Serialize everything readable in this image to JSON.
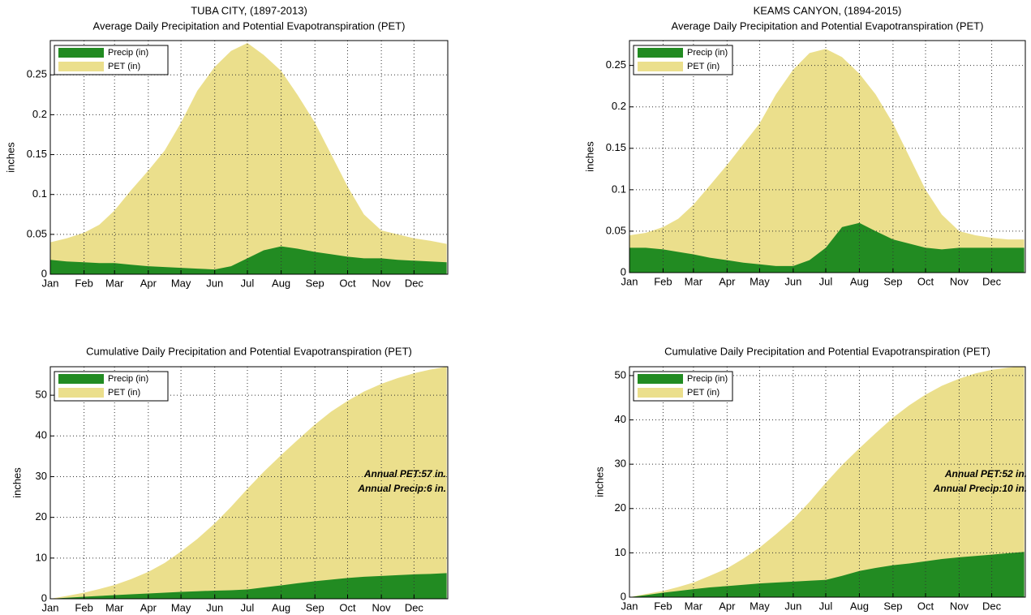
{
  "chart_data": [
    {
      "type": "area",
      "title": "TUBA CITY, (1897-2013)",
      "subtitle": "Average Daily Precipitation and Potential Evapotranspiration (PET)",
      "ylabel": "inches",
      "x": [
        1,
        16,
        32,
        46,
        60,
        75,
        91,
        106,
        121,
        136,
        152,
        167,
        182,
        197,
        213,
        228,
        244,
        259,
        274,
        289,
        305,
        320,
        335,
        350,
        365
      ],
      "series": [
        {
          "name": "Precip (in)",
          "color": "#228b22",
          "values": [
            0.018,
            0.016,
            0.015,
            0.014,
            0.014,
            0.012,
            0.01,
            0.009,
            0.008,
            0.007,
            0.006,
            0.01,
            0.02,
            0.03,
            0.035,
            0.032,
            0.028,
            0.025,
            0.022,
            0.02,
            0.02,
            0.018,
            0.017,
            0.016,
            0.015
          ]
        },
        {
          "name": "PET (in)",
          "color": "#ebdf8c",
          "values": [
            0.04,
            0.045,
            0.052,
            0.062,
            0.08,
            0.105,
            0.13,
            0.155,
            0.19,
            0.23,
            0.26,
            0.28,
            0.29,
            0.275,
            0.255,
            0.225,
            0.19,
            0.15,
            0.11,
            0.075,
            0.055,
            0.05,
            0.045,
            0.042,
            0.038
          ]
        }
      ],
      "xlim": [
        1,
        366
      ],
      "ylim": [
        0,
        0.293
      ],
      "xticks": [
        {
          "value": 1,
          "label": "Jan"
        },
        {
          "value": 32,
          "label": "Feb"
        },
        {
          "value": 60,
          "label": "Mar"
        },
        {
          "value": 91,
          "label": "Apr"
        },
        {
          "value": 121,
          "label": "May"
        },
        {
          "value": 152,
          "label": "Jun"
        },
        {
          "value": 182,
          "label": "Jul"
        },
        {
          "value": 213,
          "label": "Aug"
        },
        {
          "value": 244,
          "label": "Sep"
        },
        {
          "value": 274,
          "label": "Oct"
        },
        {
          "value": 305,
          "label": "Nov"
        },
        {
          "value": 335,
          "label": "Dec"
        }
      ],
      "yticks": [
        0,
        0.05,
        0.1,
        0.15,
        0.2,
        0.25
      ],
      "grid": true,
      "legend": "upper-left"
    },
    {
      "type": "area",
      "title": "KEAMS CANYON, (1894-2015)",
      "subtitle": "Average Daily Precipitation and Potential Evapotranspiration (PET)",
      "ylabel": "inches",
      "x": [
        1,
        16,
        32,
        46,
        60,
        75,
        91,
        106,
        121,
        136,
        152,
        167,
        182,
        197,
        213,
        228,
        244,
        259,
        274,
        289,
        305,
        320,
        335,
        350,
        365
      ],
      "series": [
        {
          "name": "Precip (in)",
          "color": "#228b22",
          "values": [
            0.03,
            0.03,
            0.028,
            0.025,
            0.022,
            0.018,
            0.015,
            0.012,
            0.01,
            0.008,
            0.008,
            0.015,
            0.03,
            0.055,
            0.06,
            0.05,
            0.04,
            0.035,
            0.03,
            0.028,
            0.03,
            0.03,
            0.03,
            0.03,
            0.03
          ]
        },
        {
          "name": "PET (in)",
          "color": "#ebdf8c",
          "values": [
            0.045,
            0.048,
            0.055,
            0.065,
            0.082,
            0.105,
            0.13,
            0.155,
            0.18,
            0.215,
            0.245,
            0.265,
            0.27,
            0.26,
            0.24,
            0.215,
            0.18,
            0.14,
            0.1,
            0.07,
            0.05,
            0.045,
            0.042,
            0.04,
            0.04
          ]
        }
      ],
      "xlim": [
        1,
        366
      ],
      "ylim": [
        0,
        0.28
      ],
      "xticks": [
        {
          "value": 1,
          "label": "Jan"
        },
        {
          "value": 32,
          "label": "Feb"
        },
        {
          "value": 60,
          "label": "Mar"
        },
        {
          "value": 91,
          "label": "Apr"
        },
        {
          "value": 121,
          "label": "May"
        },
        {
          "value": 152,
          "label": "Jun"
        },
        {
          "value": 182,
          "label": "Jul"
        },
        {
          "value": 213,
          "label": "Aug"
        },
        {
          "value": 244,
          "label": "Sep"
        },
        {
          "value": 274,
          "label": "Oct"
        },
        {
          "value": 305,
          "label": "Nov"
        },
        {
          "value": 335,
          "label": "Dec"
        }
      ],
      "yticks": [
        0,
        0.05,
        0.1,
        0.15,
        0.2,
        0.25
      ],
      "grid": true,
      "legend": "upper-left"
    },
    {
      "type": "area",
      "title": "Cumulative Daily Precipitation and Potential Evapotranspiration (PET)",
      "ylabel": "inches",
      "x": [
        1,
        16,
        32,
        46,
        60,
        75,
        91,
        106,
        121,
        136,
        152,
        167,
        182,
        197,
        213,
        228,
        244,
        259,
        274,
        289,
        305,
        320,
        335,
        350,
        365
      ],
      "series": [
        {
          "name": "Precip (in)",
          "color": "#228b22",
          "values": [
            0,
            0.25,
            0.5,
            0.7,
            0.9,
            1.1,
            1.3,
            1.5,
            1.7,
            1.85,
            2.0,
            2.1,
            2.3,
            2.8,
            3.3,
            3.8,
            4.3,
            4.7,
            5.1,
            5.4,
            5.6,
            5.8,
            6.0,
            6.1,
            6.3
          ]
        },
        {
          "name": "PET (in)",
          "color": "#ebdf8c",
          "values": [
            0,
            0.7,
            1.5,
            2.4,
            3.4,
            4.8,
            6.6,
            8.8,
            11.6,
            14.7,
            18.5,
            22.6,
            27,
            31.2,
            35.3,
            39,
            42.8,
            46,
            48.6,
            50.9,
            52.8,
            54.2,
            55.4,
            56.3,
            57
          ]
        }
      ],
      "xlim": [
        1,
        366
      ],
      "ylim": [
        0,
        57
      ],
      "xticks": [
        {
          "value": 1,
          "label": "Jan"
        },
        {
          "value": 32,
          "label": "Feb"
        },
        {
          "value": 60,
          "label": "Mar"
        },
        {
          "value": 91,
          "label": "Apr"
        },
        {
          "value": 121,
          "label": "May"
        },
        {
          "value": 152,
          "label": "Jun"
        },
        {
          "value": 182,
          "label": "Jul"
        },
        {
          "value": 213,
          "label": "Aug"
        },
        {
          "value": 244,
          "label": "Sep"
        },
        {
          "value": 274,
          "label": "Oct"
        },
        {
          "value": 305,
          "label": "Nov"
        },
        {
          "value": 335,
          "label": "Dec"
        }
      ],
      "yticks": [
        0,
        10,
        20,
        30,
        40,
        50
      ],
      "grid": true,
      "legend": "upper-left",
      "annotations": [
        "Annual PET:57 in.",
        "Annual Precip:6 in."
      ]
    },
    {
      "type": "area",
      "title": "Cumulative Daily Precipitation and Potential Evapotranspiration (PET)",
      "ylabel": "inches",
      "x": [
        1,
        16,
        32,
        46,
        60,
        75,
        91,
        106,
        121,
        136,
        152,
        167,
        182,
        197,
        213,
        228,
        244,
        259,
        274,
        289,
        305,
        320,
        335,
        350,
        365
      ],
      "series": [
        {
          "name": "Precip (in)",
          "color": "#228b22",
          "values": [
            0,
            0.45,
            1.0,
            1.4,
            1.8,
            2.2,
            2.5,
            2.8,
            3.1,
            3.3,
            3.5,
            3.7,
            3.9,
            4.8,
            5.9,
            6.6,
            7.2,
            7.6,
            8.1,
            8.6,
            9.0,
            9.3,
            9.6,
            9.9,
            10.2
          ]
        },
        {
          "name": "PET (in)",
          "color": "#ebdf8c",
          "values": [
            0,
            0.7,
            1.4,
            2.3,
            3.3,
            4.8,
            6.5,
            8.7,
            11.2,
            14.2,
            17.6,
            21.5,
            25.8,
            29.8,
            33.6,
            37,
            40.5,
            43.3,
            45.7,
            47.7,
            49.3,
            50.5,
            51.3,
            51.8,
            52.1
          ]
        }
      ],
      "xlim": [
        1,
        366
      ],
      "ylim": [
        0,
        52
      ],
      "xticks": [
        {
          "value": 1,
          "label": "Jan"
        },
        {
          "value": 32,
          "label": "Feb"
        },
        {
          "value": 60,
          "label": "Mar"
        },
        {
          "value": 91,
          "label": "Apr"
        },
        {
          "value": 121,
          "label": "May"
        },
        {
          "value": 152,
          "label": "Jun"
        },
        {
          "value": 182,
          "label": "Jul"
        },
        {
          "value": 213,
          "label": "Aug"
        },
        {
          "value": 244,
          "label": "Sep"
        },
        {
          "value": 274,
          "label": "Oct"
        },
        {
          "value": 305,
          "label": "Nov"
        },
        {
          "value": 335,
          "label": "Dec"
        }
      ],
      "yticks": [
        0,
        10,
        20,
        30,
        40,
        50
      ],
      "grid": true,
      "legend": "upper-left",
      "annotations": [
        "Annual PET:52 in.",
        "Annual Precip:10 in."
      ]
    }
  ]
}
